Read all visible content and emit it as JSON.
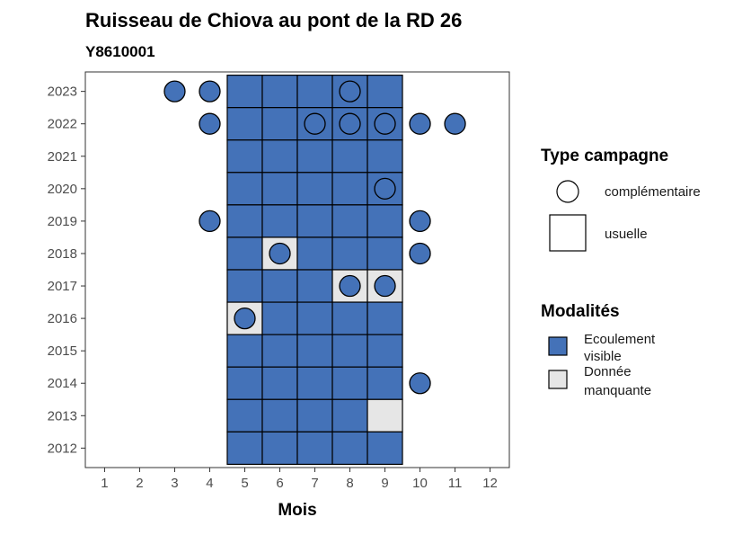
{
  "chart_data": {
    "type": "heatmap",
    "title": "Ruisseau de Chiova au pont de la RD 26",
    "subtitle": "Y8610001",
    "xlabel": "Mois",
    "ylabel": "",
    "x_categories": [
      1,
      2,
      3,
      4,
      5,
      6,
      7,
      8,
      9,
      10,
      11,
      12
    ],
    "y_categories": [
      2012,
      2013,
      2014,
      2015,
      2016,
      2017,
      2018,
      2019,
      2020,
      2021,
      2022,
      2023
    ],
    "tiles": [
      {
        "year": 2023,
        "month": 5,
        "modalite": "Ecoulement visible"
      },
      {
        "year": 2023,
        "month": 6,
        "modalite": "Ecoulement visible"
      },
      {
        "year": 2023,
        "month": 7,
        "modalite": "Ecoulement visible"
      },
      {
        "year": 2023,
        "month": 8,
        "modalite": "Ecoulement visible"
      },
      {
        "year": 2023,
        "month": 9,
        "modalite": "Ecoulement visible"
      },
      {
        "year": 2022,
        "month": 5,
        "modalite": "Ecoulement visible"
      },
      {
        "year": 2022,
        "month": 6,
        "modalite": "Ecoulement visible"
      },
      {
        "year": 2022,
        "month": 7,
        "modalite": "Ecoulement visible"
      },
      {
        "year": 2022,
        "month": 8,
        "modalite": "Ecoulement visible"
      },
      {
        "year": 2022,
        "month": 9,
        "modalite": "Ecoulement visible"
      },
      {
        "year": 2021,
        "month": 5,
        "modalite": "Ecoulement visible"
      },
      {
        "year": 2021,
        "month": 6,
        "modalite": "Ecoulement visible"
      },
      {
        "year": 2021,
        "month": 7,
        "modalite": "Ecoulement visible"
      },
      {
        "year": 2021,
        "month": 8,
        "modalite": "Ecoulement visible"
      },
      {
        "year": 2021,
        "month": 9,
        "modalite": "Ecoulement visible"
      },
      {
        "year": 2020,
        "month": 5,
        "modalite": "Ecoulement visible"
      },
      {
        "year": 2020,
        "month": 6,
        "modalite": "Ecoulement visible"
      },
      {
        "year": 2020,
        "month": 7,
        "modalite": "Ecoulement visible"
      },
      {
        "year": 2020,
        "month": 8,
        "modalite": "Ecoulement visible"
      },
      {
        "year": 2020,
        "month": 9,
        "modalite": "Ecoulement visible"
      },
      {
        "year": 2019,
        "month": 5,
        "modalite": "Ecoulement visible"
      },
      {
        "year": 2019,
        "month": 6,
        "modalite": "Ecoulement visible"
      },
      {
        "year": 2019,
        "month": 7,
        "modalite": "Ecoulement visible"
      },
      {
        "year": 2019,
        "month": 8,
        "modalite": "Ecoulement visible"
      },
      {
        "year": 2019,
        "month": 9,
        "modalite": "Ecoulement visible"
      },
      {
        "year": 2018,
        "month": 5,
        "modalite": "Ecoulement visible"
      },
      {
        "year": 2018,
        "month": 6,
        "modalite": "Donnée manquante"
      },
      {
        "year": 2018,
        "month": 7,
        "modalite": "Ecoulement visible"
      },
      {
        "year": 2018,
        "month": 8,
        "modalite": "Ecoulement visible"
      },
      {
        "year": 2018,
        "month": 9,
        "modalite": "Ecoulement visible"
      },
      {
        "year": 2017,
        "month": 5,
        "modalite": "Ecoulement visible"
      },
      {
        "year": 2017,
        "month": 6,
        "modalite": "Ecoulement visible"
      },
      {
        "year": 2017,
        "month": 7,
        "modalite": "Ecoulement visible"
      },
      {
        "year": 2017,
        "month": 8,
        "modalite": "Donnée manquante"
      },
      {
        "year": 2017,
        "month": 9,
        "modalite": "Donnée manquante"
      },
      {
        "year": 2016,
        "month": 5,
        "modalite": "Donnée manquante"
      },
      {
        "year": 2016,
        "month": 6,
        "modalite": "Ecoulement visible"
      },
      {
        "year": 2016,
        "month": 7,
        "modalite": "Ecoulement visible"
      },
      {
        "year": 2016,
        "month": 8,
        "modalite": "Ecoulement visible"
      },
      {
        "year": 2016,
        "month": 9,
        "modalite": "Ecoulement visible"
      },
      {
        "year": 2015,
        "month": 5,
        "modalite": "Ecoulement visible"
      },
      {
        "year": 2015,
        "month": 6,
        "modalite": "Ecoulement visible"
      },
      {
        "year": 2015,
        "month": 7,
        "modalite": "Ecoulement visible"
      },
      {
        "year": 2015,
        "month": 8,
        "modalite": "Ecoulement visible"
      },
      {
        "year": 2015,
        "month": 9,
        "modalite": "Ecoulement visible"
      },
      {
        "year": 2014,
        "month": 5,
        "modalite": "Ecoulement visible"
      },
      {
        "year": 2014,
        "month": 6,
        "modalite": "Ecoulement visible"
      },
      {
        "year": 2014,
        "month": 7,
        "modalite": "Ecoulement visible"
      },
      {
        "year": 2014,
        "month": 8,
        "modalite": "Ecoulement visible"
      },
      {
        "year": 2014,
        "month": 9,
        "modalite": "Ecoulement visible"
      },
      {
        "year": 2013,
        "month": 5,
        "modalite": "Ecoulement visible"
      },
      {
        "year": 2013,
        "month": 6,
        "modalite": "Ecoulement visible"
      },
      {
        "year": 2013,
        "month": 7,
        "modalite": "Ecoulement visible"
      },
      {
        "year": 2013,
        "month": 8,
        "modalite": "Ecoulement visible"
      },
      {
        "year": 2013,
        "month": 9,
        "modalite": "Donnée manquante"
      },
      {
        "year": 2012,
        "month": 5,
        "modalite": "Ecoulement visible"
      },
      {
        "year": 2012,
        "month": 6,
        "modalite": "Ecoulement visible"
      },
      {
        "year": 2012,
        "month": 7,
        "modalite": "Ecoulement visible"
      },
      {
        "year": 2012,
        "month": 8,
        "modalite": "Ecoulement visible"
      },
      {
        "year": 2012,
        "month": 9,
        "modalite": "Ecoulement visible"
      }
    ],
    "points": [
      {
        "year": 2023,
        "month": 3,
        "modalite": "Ecoulement visible"
      },
      {
        "year": 2023,
        "month": 4,
        "modalite": "Ecoulement visible"
      },
      {
        "year": 2023,
        "month": 8,
        "modalite": "Ecoulement visible"
      },
      {
        "year": 2022,
        "month": 4,
        "modalite": "Ecoulement visible"
      },
      {
        "year": 2022,
        "month": 7,
        "modalite": "Ecoulement visible"
      },
      {
        "year": 2022,
        "month": 8,
        "modalite": "Ecoulement visible"
      },
      {
        "year": 2022,
        "month": 9,
        "modalite": "Ecoulement visible"
      },
      {
        "year": 2022,
        "month": 10,
        "modalite": "Ecoulement visible"
      },
      {
        "year": 2022,
        "month": 11,
        "modalite": "Ecoulement visible"
      },
      {
        "year": 2020,
        "month": 9,
        "modalite": "Ecoulement visible"
      },
      {
        "year": 2019,
        "month": 4,
        "modalite": "Ecoulement visible"
      },
      {
        "year": 2019,
        "month": 10,
        "modalite": "Ecoulement visible"
      },
      {
        "year": 2018,
        "month": 6,
        "modalite": "Ecoulement visible"
      },
      {
        "year": 2018,
        "month": 10,
        "modalite": "Ecoulement visible"
      },
      {
        "year": 2017,
        "month": 8,
        "modalite": "Ecoulement visible"
      },
      {
        "year": 2017,
        "month": 9,
        "modalite": "Ecoulement visible"
      },
      {
        "year": 2016,
        "month": 5,
        "modalite": "Ecoulement visible"
      },
      {
        "year": 2014,
        "month": 10,
        "modalite": "Ecoulement visible"
      }
    ],
    "colors": {
      "Ecoulement visible": "#4472b8",
      "Donnée manquante": "#e6e6e6"
    },
    "legend": {
      "placement": "right",
      "type_title": "Type campagne",
      "type_items": [
        {
          "shape": "circle",
          "label": "complémentaire"
        },
        {
          "shape": "square",
          "label": "usuelle"
        }
      ],
      "modalites_title": "Modalités",
      "modalites_items": [
        {
          "key": "Ecoulement visible",
          "lines": [
            "Ecoulement",
            "visible"
          ]
        },
        {
          "key": "Donnée manquante",
          "lines": [
            "Donnée",
            "manquante"
          ]
        }
      ]
    },
    "grid": false
  }
}
